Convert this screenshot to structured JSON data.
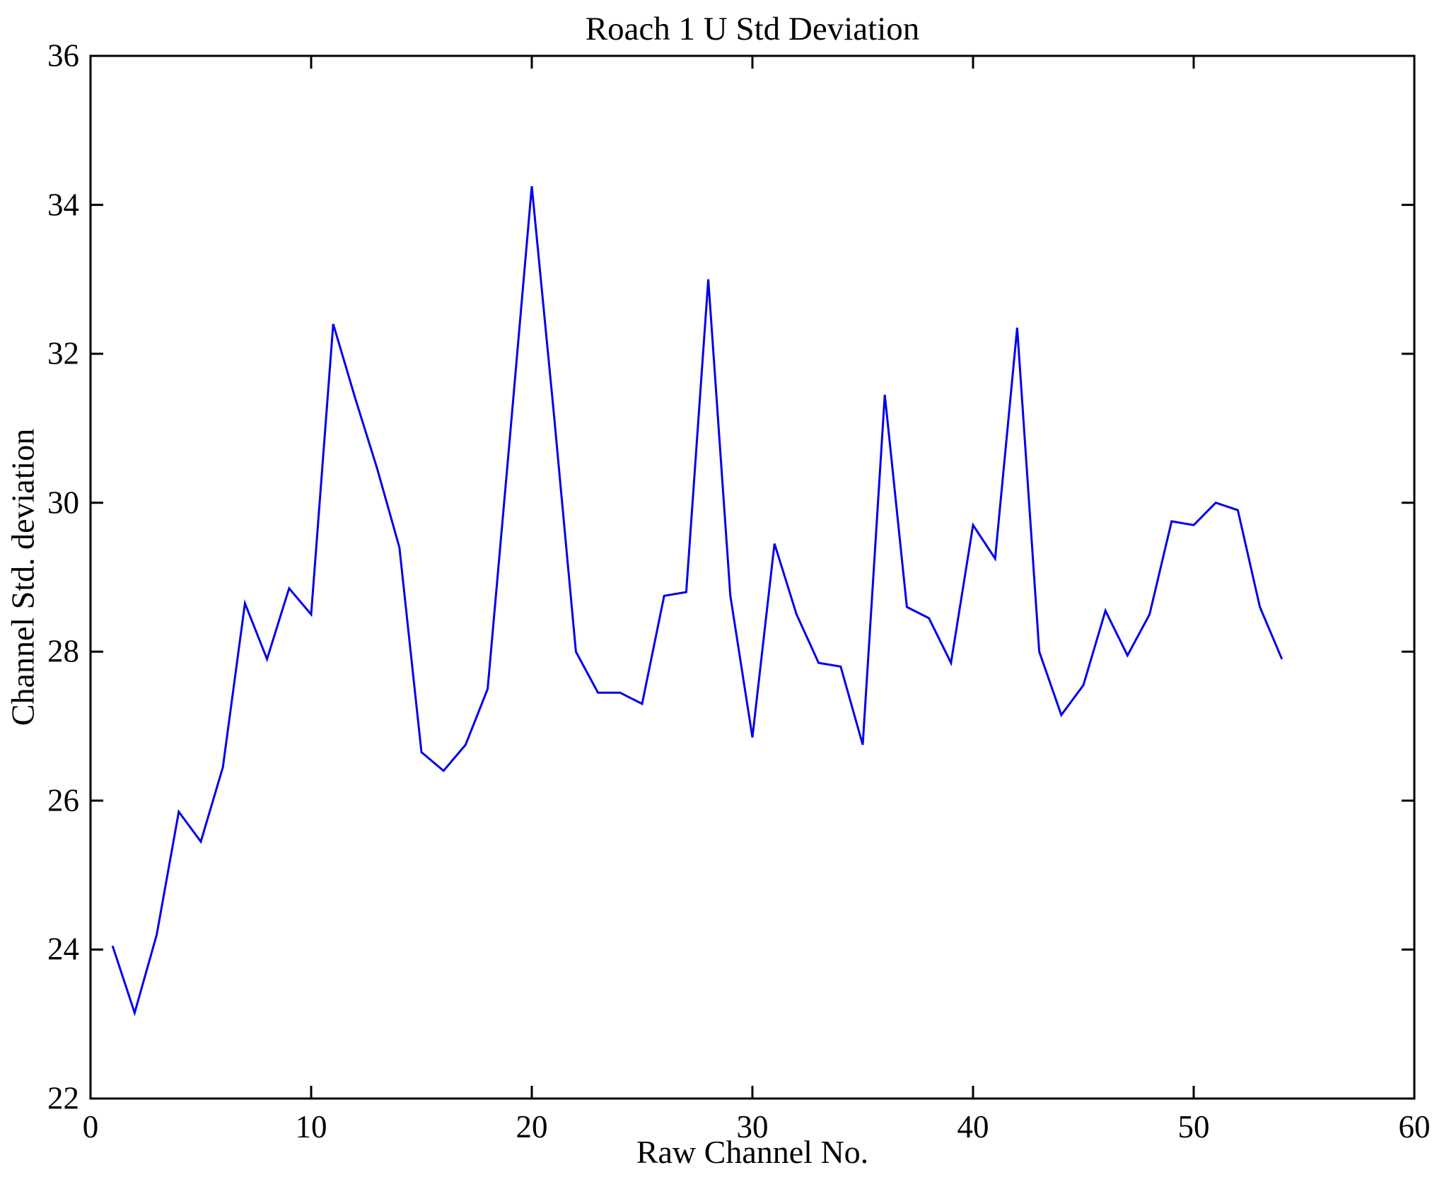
{
  "figure": {
    "background": "#ffffff",
    "axis_color": "#000000"
  },
  "chart_data": {
    "type": "line",
    "title": "Roach 1 U Std Deviation",
    "xlabel": "Raw Channel No.",
    "ylabel": "Channel Std. deviation",
    "xlim": [
      0,
      60
    ],
    "ylim": [
      22,
      36
    ],
    "xticks": [
      0,
      10,
      20,
      30,
      40,
      50,
      60
    ],
    "yticks": [
      22,
      24,
      26,
      28,
      30,
      32,
      34,
      36
    ],
    "grid": false,
    "legend_position": "none",
    "line_color": "#0000EE",
    "x": [
      1,
      2,
      3,
      4,
      5,
      6,
      7,
      8,
      9,
      10,
      11,
      12,
      13,
      14,
      15,
      16,
      17,
      18,
      19,
      20,
      21,
      22,
      23,
      24,
      25,
      26,
      27,
      28,
      29,
      30,
      31,
      32,
      33,
      34,
      35,
      36,
      37,
      38,
      39,
      40,
      41,
      42,
      43,
      44,
      45,
      46,
      47,
      48,
      49,
      50,
      51,
      52,
      53,
      54
    ],
    "values": [
      24.05,
      23.15,
      24.2,
      25.85,
      25.45,
      26.45,
      28.65,
      27.9,
      28.85,
      28.5,
      32.4,
      31.4,
      30.45,
      29.4,
      26.65,
      26.4,
      26.75,
      27.5,
      30.85,
      34.25,
      31.2,
      28.0,
      27.45,
      27.45,
      27.3,
      28.75,
      28.8,
      33.0,
      28.75,
      26.85,
      29.45,
      28.5,
      27.85,
      27.8,
      26.75,
      31.45,
      28.6,
      28.45,
      27.85,
      29.7,
      29.25,
      32.35,
      28.0,
      27.15,
      27.55,
      28.55,
      27.95,
      28.5,
      29.75,
      29.7,
      30.0,
      29.9,
      28.6,
      27.9
    ]
  }
}
